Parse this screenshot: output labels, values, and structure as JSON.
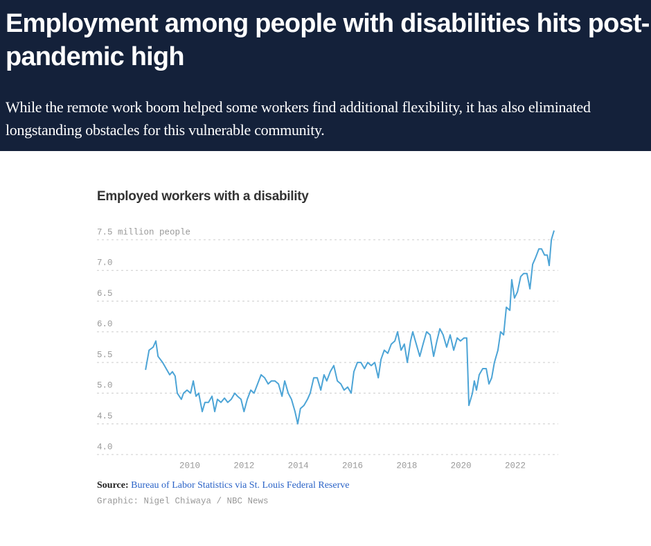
{
  "header": {
    "title": "Employment among people with disabilities hits post-pandemic high",
    "subtitle": "While the remote work boom helped some workers find additional flexibility, it has also eliminated longstanding obstacles for this vulnerable community."
  },
  "chart_data": {
    "type": "line",
    "title": "Employed workers with a disability",
    "color": "#4ca4d6",
    "x": [
      2008.37,
      2008.5,
      2008.65,
      2008.75,
      2008.83,
      2009.0,
      2009.13,
      2009.26,
      2009.36,
      2009.46,
      2009.54,
      2009.69,
      2009.77,
      2009.9,
      2010.03,
      2010.13,
      2010.23,
      2010.33,
      2010.46,
      2010.56,
      2010.69,
      2010.82,
      2010.92,
      2011.02,
      2011.15,
      2011.28,
      2011.4,
      2011.53,
      2011.66,
      2011.76,
      2011.89,
      2012.0,
      2012.12,
      2012.25,
      2012.37,
      2012.5,
      2012.63,
      2012.76,
      2012.89,
      2013.01,
      2013.14,
      2013.27,
      2013.4,
      2013.5,
      2013.63,
      2013.75,
      2013.88,
      2013.98,
      2014.08,
      2014.21,
      2014.34,
      2014.44,
      2014.57,
      2014.7,
      2014.83,
      2014.95,
      2015.05,
      2015.18,
      2015.31,
      2015.44,
      2015.57,
      2015.69,
      2015.82,
      2015.95,
      2016.05,
      2016.18,
      2016.31,
      2016.44,
      2016.56,
      2016.69,
      2016.82,
      2016.95,
      2017.05,
      2017.17,
      2017.3,
      2017.43,
      2017.56,
      2017.66,
      2017.79,
      2017.91,
      2018.02,
      2018.14,
      2018.22,
      2018.35,
      2018.48,
      2018.6,
      2018.73,
      2018.86,
      2018.99,
      2019.11,
      2019.22,
      2019.34,
      2019.47,
      2019.6,
      2019.73,
      2019.86,
      2019.98,
      2020.11,
      2020.21,
      2020.29,
      2020.42,
      2020.49,
      2020.57,
      2020.67,
      2020.8,
      2020.93,
      2021.03,
      2021.13,
      2021.23,
      2021.36,
      2021.46,
      2021.57,
      2021.67,
      2021.8,
      2021.87,
      2021.97,
      2022.08,
      2022.2,
      2022.31,
      2022.43,
      2022.54,
      2022.64,
      2022.74,
      2022.87,
      2022.97,
      2023.08,
      2023.18,
      2023.25,
      2023.33,
      2023.43
    ],
    "values": [
      5.38,
      5.7,
      5.75,
      5.85,
      5.6,
      5.5,
      5.4,
      5.3,
      5.35,
      5.28,
      5.0,
      4.9,
      5.0,
      5.05,
      5.0,
      5.2,
      4.95,
      5.0,
      4.7,
      4.85,
      4.85,
      4.95,
      4.7,
      4.9,
      4.85,
      4.92,
      4.85,
      4.9,
      5.0,
      4.95,
      4.9,
      4.7,
      4.9,
      5.05,
      5.0,
      5.15,
      5.3,
      5.25,
      5.15,
      5.2,
      5.2,
      5.15,
      4.95,
      5.2,
      5.0,
      4.9,
      4.7,
      4.5,
      4.75,
      4.8,
      4.9,
      5.0,
      5.25,
      5.25,
      5.05,
      5.3,
      5.2,
      5.35,
      5.45,
      5.2,
      5.15,
      5.05,
      5.1,
      5.0,
      5.35,
      5.5,
      5.5,
      5.4,
      5.5,
      5.45,
      5.5,
      5.25,
      5.55,
      5.7,
      5.65,
      5.8,
      5.85,
      6.0,
      5.7,
      5.8,
      5.5,
      5.85,
      6.0,
      5.8,
      5.6,
      5.8,
      6.0,
      5.95,
      5.6,
      5.85,
      6.05,
      5.95,
      5.75,
      5.95,
      5.7,
      5.9,
      5.85,
      5.9,
      5.9,
      4.8,
      5.0,
      5.2,
      5.05,
      5.3,
      5.4,
      5.4,
      5.15,
      5.25,
      5.5,
      5.7,
      6.0,
      5.95,
      6.4,
      6.35,
      6.85,
      6.55,
      6.65,
      6.9,
      6.95,
      6.95,
      6.7,
      7.1,
      7.2,
      7.35,
      7.35,
      7.25,
      7.25,
      7.08,
      7.5,
      7.65
    ],
    "xlim": [
      2008.2,
      2023.6
    ],
    "xticks": [
      2010,
      2012,
      2014,
      2016,
      2018,
      2020,
      2022
    ],
    "ylim": [
      4,
      7.5
    ],
    "yticks": [
      {
        "value": 4,
        "label": "4.0"
      },
      4.5,
      {
        "value": 5,
        "label": "5.0"
      },
      5.5,
      {
        "value": 6,
        "label": "6.0"
      },
      6.5,
      {
        "value": 7,
        "label": "7.0"
      },
      {
        "value": 7.5,
        "label": "7.5 million people"
      }
    ],
    "grid": true,
    "source": {
      "label": "Source:",
      "text": "Bureau of Labor Statistics via St. Louis Federal Reserve"
    },
    "credit": "Graphic: Nigel Chiwaya / NBC News"
  }
}
